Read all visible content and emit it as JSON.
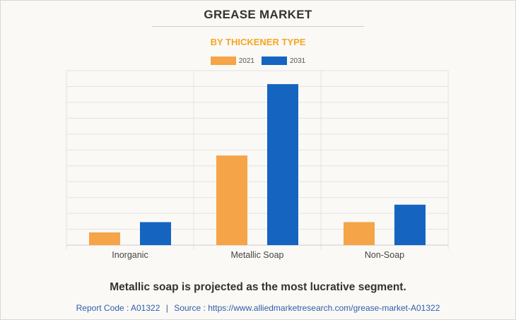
{
  "chart_data": {
    "type": "bar",
    "title": "GREASE MARKET",
    "subtitle": "BY THICKENER TYPE",
    "categories": [
      "Inorganic",
      "Metallic Soap",
      "Non-Soap"
    ],
    "series": [
      {
        "name": "2021",
        "color": "#f5a447",
        "values": [
          0.8,
          5.65,
          1.45
        ]
      },
      {
        "name": "2031",
        "color": "#1565c0",
        "values": [
          1.45,
          10.15,
          2.55
        ]
      }
    ],
    "ylim": [
      0,
      11
    ],
    "y_gridlines": 11,
    "grid": true,
    "legend_position": "top-center",
    "xlabel": "",
    "ylabel": ""
  },
  "caption": "Metallic soap is projected as the most lucrative segment.",
  "footer": {
    "report_code": "Report Code : A01322",
    "separator": "|",
    "source": "Source : https://www.alliedmarketresearch.com/grease-market-A01322"
  }
}
